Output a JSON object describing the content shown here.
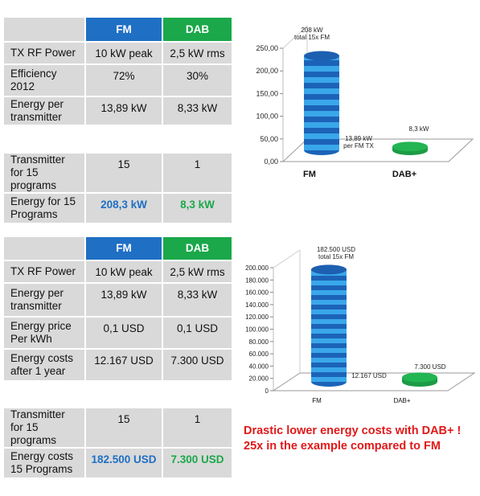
{
  "table1": {
    "header": {
      "fm": "FM",
      "dab": "DAB"
    },
    "rows": [
      {
        "label": "TX RF Power",
        "fm": "10 kW peak",
        "dab": "2,5 kW rms"
      },
      {
        "label": "Efficiency 2012",
        "fm": "72%",
        "dab": "30%"
      },
      {
        "label": "Energy per transmitter",
        "fm": "13,89 kW",
        "dab": "8,33 kW"
      }
    ]
  },
  "table2": {
    "rows": [
      {
        "label": "Transmitter for 15 programs",
        "fm": "15",
        "dab": "1"
      },
      {
        "label": "Energy for 15 Programs",
        "fm": "208,3 kW",
        "dab": "8,3 kW"
      }
    ]
  },
  "table3": {
    "header": {
      "fm": "FM",
      "dab": "DAB"
    },
    "rows": [
      {
        "label": "TX RF Power",
        "fm": "10 kW peak",
        "dab": "2,5 kW rms"
      },
      {
        "label": "Energy per transmitter",
        "fm": "13,89 kW",
        "dab": "8,33 kW"
      },
      {
        "label": "Energy price Per kWh",
        "fm": "0,1 USD",
        "dab": "0,1 USD"
      },
      {
        "label": "Energy costs after 1 year",
        "fm": "12.167 USD",
        "dab": "7.300 USD"
      }
    ]
  },
  "table4": {
    "rows": [
      {
        "label": "Transmitter for 15 programs",
        "fm": "15",
        "dab": "1"
      },
      {
        "label": "Energy costs 15 Programs",
        "fm": "182.500 USD",
        "dab": "7.300 USD"
      }
    ]
  },
  "note": {
    "line1": "Drastic lower energy costs with DAB+ !",
    "line2": "25x in the example compared to FM"
  },
  "colors": {
    "fm": "#1f6fc4",
    "dab": "#1aa84a",
    "note": "#e11919",
    "cell": "#d9d9d9"
  },
  "chart_data": [
    {
      "type": "bar",
      "categories": [
        "FM",
        "DAB+"
      ],
      "values": [
        208.3,
        8.3
      ],
      "ylim": [
        0,
        250
      ],
      "yticks": [
        "0,00",
        "50,00",
        "100,00",
        "150,00",
        "200,00",
        "250,00"
      ],
      "annotations": [
        {
          "line1": "208 kW",
          "line2": "total 15x FM"
        },
        {
          "line1": "13,89 kW",
          "line2": "per FM TX"
        },
        {
          "line1": "8,3 kW",
          "line2": ""
        }
      ],
      "grid": false,
      "style": "3d-cylinder"
    },
    {
      "type": "bar",
      "categories": [
        "FM",
        "DAB+"
      ],
      "values": [
        182500,
        7300
      ],
      "ylim": [
        0,
        200000
      ],
      "yticks": [
        "0",
        "20.000",
        "40.000",
        "60.000",
        "80.000",
        "100.000",
        "120.000",
        "140.000",
        "160.000",
        "180.000",
        "200.000"
      ],
      "annotations": [
        {
          "line1": "182.500 USD",
          "line2": "total   15x FM"
        },
        {
          "line1": "12.167  USD",
          "line2": ""
        },
        {
          "line1": "7.300 USD",
          "line2": ""
        }
      ],
      "grid": false,
      "style": "3d-cylinder"
    }
  ]
}
